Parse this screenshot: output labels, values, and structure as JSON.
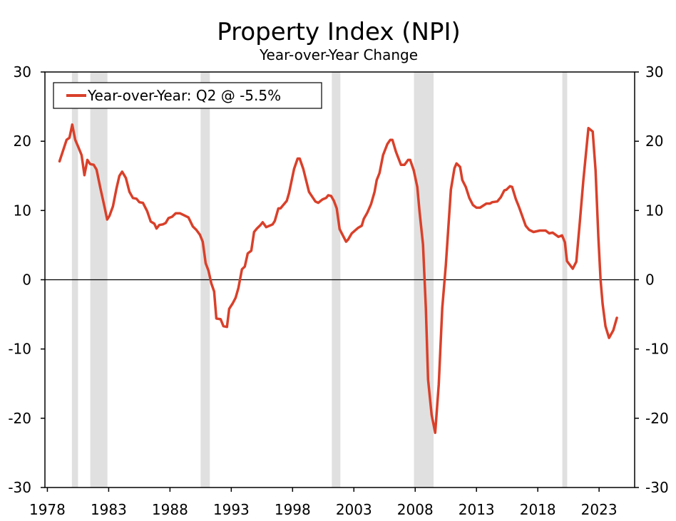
{
  "chart_data": {
    "type": "line",
    "title": "Property Index (NPI)",
    "subtitle": "Year-over-Year Change",
    "xlabel": "",
    "ylabel": "",
    "xlim": [
      1977.8,
      2025.9
    ],
    "ylim": [
      -30,
      30
    ],
    "x_ticks": [
      1978,
      1983,
      1988,
      1993,
      1998,
      2003,
      2008,
      2013,
      2018,
      2023
    ],
    "y_ticks": [
      30,
      20,
      10,
      0,
      -10,
      -20,
      -30
    ],
    "grid": false,
    "legend": {
      "placement": "top-left",
      "entries": [
        "Year-over-Year: Q2 @ -5.5%"
      ]
    },
    "colors": {
      "series": "#d9402a",
      "recession_band": "#e0e0e0",
      "zero_line": "#000000"
    },
    "recession_bands": [
      [
        1980.0,
        1980.5
      ],
      [
        1981.5,
        1982.9
      ],
      [
        1990.5,
        1991.25
      ],
      [
        2001.2,
        2001.9
      ],
      [
        2007.9,
        2009.5
      ],
      [
        2020.0,
        2020.4
      ]
    ],
    "series": [
      {
        "name": "Year-over-Year: Q2 @ -5.5%",
        "x": [
          1978.99,
          1979.57,
          1979.8,
          1980.03,
          1980.27,
          1980.56,
          1980.79,
          1981.02,
          1981.26,
          1981.49,
          1981.78,
          1982.01,
          1982.3,
          1982.65,
          1982.88,
          1983.06,
          1983.35,
          1983.64,
          1983.87,
          1984.1,
          1984.4,
          1984.69,
          1984.98,
          1985.27,
          1985.5,
          1985.79,
          1986.14,
          1986.43,
          1986.72,
          1986.9,
          1987.13,
          1987.42,
          1987.65,
          1987.88,
          1988.17,
          1988.47,
          1988.81,
          1989.05,
          1989.51,
          1989.86,
          1990.15,
          1990.44,
          1990.67,
          1990.91,
          1991.14,
          1991.37,
          1991.6,
          1991.78,
          1992.13,
          1992.36,
          1992.65,
          1992.83,
          1993.12,
          1993.35,
          1993.58,
          1993.87,
          1994.1,
          1994.34,
          1994.63,
          1994.86,
          1995.09,
          1995.38,
          1995.56,
          1995.85,
          1996.37,
          1996.55,
          1996.84,
          1997.01,
          1997.53,
          1997.71,
          1998.12,
          1998.41,
          1998.58,
          1998.87,
          1999.34,
          1999.86,
          2000.09,
          2000.44,
          2000.73,
          2000.91,
          2001.14,
          2001.37,
          2001.6,
          2001.84,
          2002.36,
          2002.53,
          2002.83,
          2003.35,
          2003.64,
          2003.81,
          2004.1,
          2004.4,
          2004.69,
          2004.86,
          2005.09,
          2005.38,
          2005.73,
          2005.97,
          2006.14,
          2006.43,
          2006.84,
          2007.13,
          2007.42,
          2007.59,
          2007.88,
          2008.17,
          2008.35,
          2008.64,
          2008.87,
          2009.05,
          2009.34,
          2009.63,
          2009.92,
          2010.21,
          2010.5,
          2010.91,
          2011.2,
          2011.37,
          2011.66,
          2011.84,
          2012.13,
          2012.42,
          2012.71,
          2013.0,
          2013.29,
          2013.81,
          2014.1,
          2014.28,
          2014.69,
          2014.98,
          2015.27,
          2015.44,
          2015.73,
          2015.91,
          2016.2,
          2016.49,
          2017.01,
          2017.3,
          2017.65,
          2018.17,
          2018.64,
          2018.93,
          2019.22,
          2019.69,
          2019.98,
          2020.21,
          2020.38,
          2020.85,
          2021.14,
          2021.43,
          2021.72,
          2022.13,
          2022.48,
          2022.71,
          2022.94,
          2023.12,
          2023.29,
          2023.52,
          2023.81,
          2024.16,
          2024.45
        ],
        "values": [
          17.1,
          20.2,
          20.5,
          22.4,
          20.2,
          19.0,
          18.0,
          15.1,
          17.3,
          16.7,
          16.6,
          15.9,
          13.4,
          10.6,
          8.7,
          9.2,
          10.6,
          13.2,
          15.0,
          15.6,
          14.7,
          12.7,
          11.8,
          11.7,
          11.2,
          11.1,
          9.9,
          8.4,
          8.1,
          7.4,
          7.9,
          8.0,
          8.2,
          8.9,
          9.1,
          9.6,
          9.6,
          9.4,
          9.0,
          7.7,
          7.2,
          6.5,
          5.5,
          2.4,
          1.3,
          -0.5,
          -1.7,
          -5.6,
          -5.7,
          -6.7,
          -6.8,
          -4.2,
          -3.4,
          -2.6,
          -1.2,
          1.5,
          1.9,
          3.8,
          4.2,
          6.9,
          7.4,
          7.9,
          8.3,
          7.6,
          8.0,
          8.5,
          10.3,
          10.3,
          11.4,
          12.5,
          16.0,
          17.5,
          17.5,
          16.0,
          12.7,
          11.3,
          11.1,
          11.6,
          11.8,
          12.2,
          12.1,
          11.4,
          10.3,
          7.3,
          5.5,
          5.8,
          6.7,
          7.5,
          7.8,
          8.8,
          9.7,
          10.9,
          12.7,
          14.4,
          15.4,
          18.0,
          19.6,
          20.2,
          20.2,
          18.5,
          16.6,
          16.6,
          17.3,
          17.3,
          15.8,
          13.4,
          9.9,
          5.1,
          -4.1,
          -14.4,
          -19.5,
          -22.1,
          -15.1,
          -4.1,
          2.1,
          13.0,
          16.1,
          16.8,
          16.3,
          14.4,
          13.4,
          11.8,
          10.8,
          10.4,
          10.4,
          11.0,
          11.0,
          11.2,
          11.3,
          11.9,
          12.9,
          13.0,
          13.5,
          13.4,
          11.7,
          10.4,
          7.8,
          7.2,
          6.9,
          7.1,
          7.1,
          6.7,
          6.8,
          6.2,
          6.4,
          5.4,
          2.7,
          1.6,
          2.6,
          8.3,
          14.4,
          21.9,
          21.4,
          15.8,
          6.2,
          0.0,
          -3.5,
          -6.7,
          -8.4,
          -7.3,
          -5.5
        ]
      }
    ]
  }
}
